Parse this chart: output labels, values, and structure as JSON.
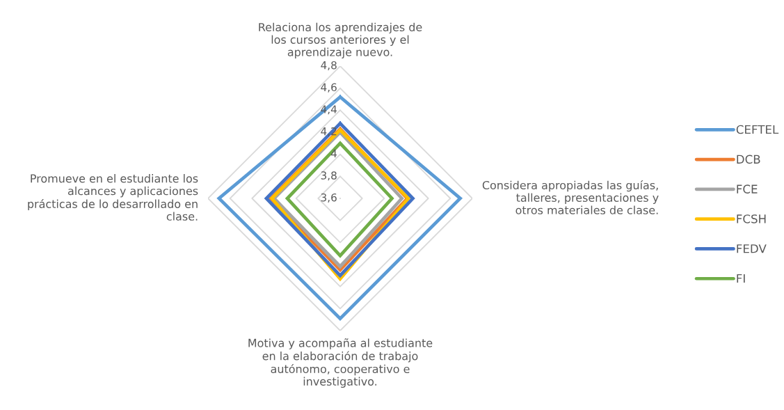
{
  "chart_data": {
    "type": "radar",
    "categories": [
      "Relaciona los aprendizajes de los cursos anteriores y el aprendizaje nuevo.",
      "Considera apropiadas las guías, talleres, presentaciones y otros materiales de clase.",
      "Motiva y acompaña al estudiante en la elaboración de trabajo autónomo, cooperativo e investigativo.",
      "Promueve en el estudiante los alcances y aplicaciones prácticas de lo desarrollado en clase."
    ],
    "series": [
      {
        "name": "CEFTEL",
        "color": "#5b9bd5",
        "values": [
          4.52,
          4.69,
          4.69,
          4.7
        ]
      },
      {
        "name": "DCB",
        "color": "#ed7d31",
        "values": [
          4.23,
          4.21,
          4.25,
          4.23
        ]
      },
      {
        "name": "FCE",
        "color": "#a5a5a5",
        "values": [
          4.2,
          4.16,
          4.22,
          4.2
        ]
      },
      {
        "name": "FCSH",
        "color": "#ffc000",
        "values": [
          4.22,
          4.22,
          4.33,
          4.22
        ]
      },
      {
        "name": "FEDV",
        "color": "#4472c4",
        "values": [
          4.28,
          4.26,
          4.3,
          4.27
        ]
      },
      {
        "name": "FI",
        "color": "#70ad47",
        "values": [
          4.1,
          4.07,
          4.12,
          4.08
        ]
      }
    ],
    "ylim": [
      3.6,
      4.8
    ],
    "yticks": [
      {
        "value": 3.6,
        "label": "3,6"
      },
      {
        "value": 3.8,
        "label": "3,8"
      },
      {
        "value": 4,
        "label": "4"
      },
      {
        "value": 4.2,
        "label": "4,2"
      },
      {
        "value": 4.4,
        "label": "4,4"
      },
      {
        "value": 4.6,
        "label": "4,6"
      },
      {
        "value": 4.8,
        "label": "4,8"
      }
    ],
    "grid": true,
    "legend": "right",
    "marker": "none",
    "line_style": "solid"
  }
}
